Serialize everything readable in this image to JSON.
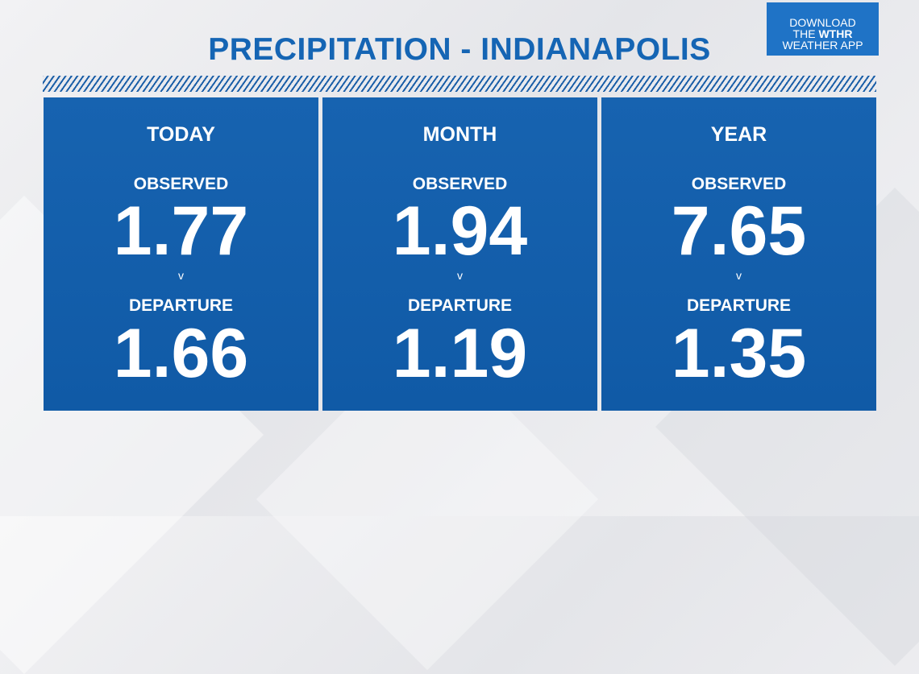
{
  "title": "PRECIPITATION - INDIANAPOLIS",
  "app_badge": {
    "line1": "DOWNLOAD",
    "line2_prefix": "THE ",
    "line2_brand": "WTHR",
    "line3": "WEATHER APP"
  },
  "panels": [
    {
      "period": "TODAY",
      "observed_label": "OBSERVED",
      "observed_value": "1.77",
      "separator": "v",
      "departure_label": "DEPARTURE",
      "departure_value": "1.66"
    },
    {
      "period": "MONTH",
      "observed_label": "OBSERVED",
      "observed_value": "1.94",
      "separator": "v",
      "departure_label": "DEPARTURE",
      "departure_value": "1.19"
    },
    {
      "period": "YEAR",
      "observed_label": "OBSERVED",
      "observed_value": "7.65",
      "separator": "v",
      "departure_label": "DEPARTURE",
      "departure_value": "1.35"
    }
  ],
  "colors": {
    "title": "#1565b4",
    "panel": "#1763b0",
    "badge": "#1f73c6"
  }
}
